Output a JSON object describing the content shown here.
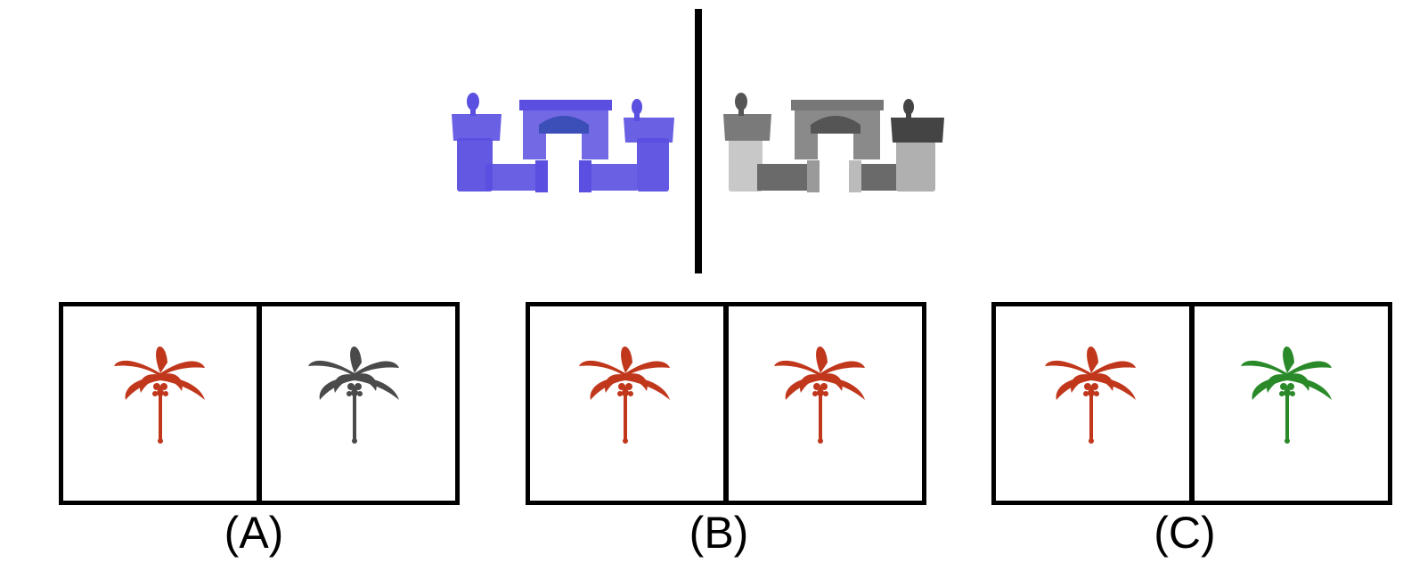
{
  "example": {
    "left_castle_color": "#5a4fe0",
    "right_castle_color": "#8a8a8a"
  },
  "options": [
    {
      "label": "(A)",
      "left_color": "#c0371c",
      "right_color": "#4a4a4a"
    },
    {
      "label": "(B)",
      "left_color": "#c0371c",
      "right_color": "#c0371c"
    },
    {
      "label": "(C)",
      "left_color": "#c0371c",
      "right_color": "#2a8a2a"
    }
  ]
}
